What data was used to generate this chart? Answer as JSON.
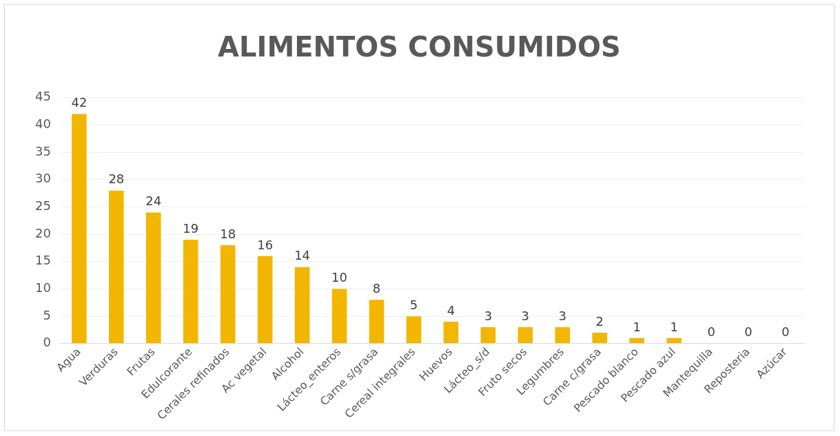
{
  "chart_data": {
    "type": "bar",
    "title": "ALIMENTOS CONSUMIDOS",
    "categories": [
      "Agua",
      "Verduras",
      "Frutas",
      "Edulcorante",
      "Cerales refinados",
      "Ac vegetal",
      "Alcohol",
      "Lácteo_enteros",
      "Carne s/grasa",
      "Cereal integrales",
      "Huevos",
      "Lácteo_s/d",
      "Fruto secos",
      "Legumbres",
      "Carne c/grasa",
      "Pescado blanco",
      "Pescado azul",
      "Mantequilla",
      "Reposteria",
      "Azúcar"
    ],
    "values": [
      42,
      28,
      24,
      19,
      18,
      16,
      14,
      10,
      8,
      5,
      4,
      3,
      3,
      3,
      2,
      1,
      1,
      0,
      0,
      0
    ],
    "color": "#f2b600",
    "ylim": [
      0,
      45
    ],
    "yticks": [
      0,
      5,
      10,
      15,
      20,
      25,
      30,
      35,
      40,
      45
    ],
    "grid": "y",
    "data_labels": true,
    "legend": false
  }
}
